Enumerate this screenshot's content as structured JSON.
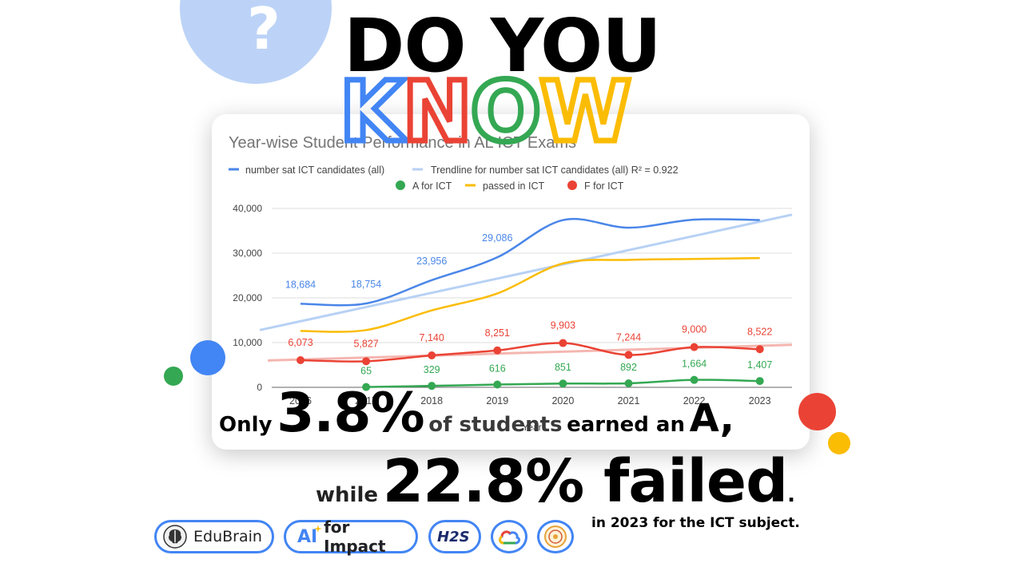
{
  "header": {
    "question_mark": "?",
    "line1": "DO YOU",
    "line2_letters": [
      {
        "ch": "K",
        "color": "#4285f4"
      },
      {
        "ch": "N",
        "color": "#ea4335"
      },
      {
        "ch": "O",
        "color": "#34a853"
      },
      {
        "ch": "W",
        "color": "#fbbc04"
      }
    ]
  },
  "chart_data": {
    "type": "line",
    "title": "Year-wise Student Performance in AL ICT Exams",
    "xlabel": "Year",
    "x": [
      "2016",
      "2017",
      "2018",
      "2019",
      "2020",
      "2021",
      "2022",
      "2023"
    ],
    "ylim": [
      0,
      40000
    ],
    "yticks": [
      "0",
      "10,000",
      "20,000",
      "30,000",
      "40,000"
    ],
    "legend_position": "top",
    "grid": true,
    "series": [
      {
        "name": "number sat ICT candidates (all)",
        "color": "#4a86e8",
        "values": [
          18684,
          18754,
          23956,
          29086,
          37400,
          35700,
          37500,
          37400
        ],
        "labels": [
          "18,684",
          "18,754",
          "23,956",
          "29,086",
          "",
          "",
          "",
          ""
        ],
        "markers": false
      },
      {
        "name": "A for ICT",
        "color": "#34a853",
        "values": [
          null,
          65,
          329,
          616,
          851,
          892,
          1664,
          1407
        ],
        "labels": [
          "",
          "65",
          "329",
          "616",
          "851",
          "892",
          "1,664",
          "1,407"
        ],
        "markers": true
      },
      {
        "name": "passed in ICT",
        "color": "#fbbc04",
        "values": [
          12600,
          12800,
          17200,
          21000,
          27700,
          28500,
          28700,
          28900
        ],
        "labels": [
          "",
          "",
          "",
          "",
          "",
          "",
          "",
          ""
        ],
        "markers": false
      },
      {
        "name": "F for ICT",
        "color": "#ea4335",
        "values": [
          6073,
          5827,
          7140,
          8251,
          9903,
          7244,
          9000,
          8522
        ],
        "labels": [
          "6,073",
          "5,827",
          "7,140",
          "8,251",
          "9,903",
          "7,244",
          "9,000",
          "8,522"
        ],
        "markers": true
      }
    ],
    "trendlines": [
      {
        "name": "Trendline for number sat ICT candidates (all) R² = 0.922",
        "color": "#b7d1f5",
        "from": 12800,
        "to": 38600
      },
      {
        "color": "#f4b6b0",
        "from": 6000,
        "to": 9500
      }
    ]
  },
  "stats": {
    "line1": {
      "pre": "Only",
      "value": "3.8%",
      "mid": "of students",
      "post": "earned an",
      "grade": "A,"
    },
    "line2": {
      "pre": "while",
      "value": "22.8% failed",
      "dot": "."
    },
    "note": "in 2023 for the ICT subject."
  },
  "logos": {
    "edubrain": "EduBrain",
    "ai_mark": "AI",
    "ai_text": "for Impact",
    "h2s": "H2S"
  },
  "colors": {
    "blue": "#4285f4",
    "red": "#ea4335",
    "green": "#34a853",
    "yellow": "#fbbc04",
    "light_blue": "#bcd3f7"
  }
}
